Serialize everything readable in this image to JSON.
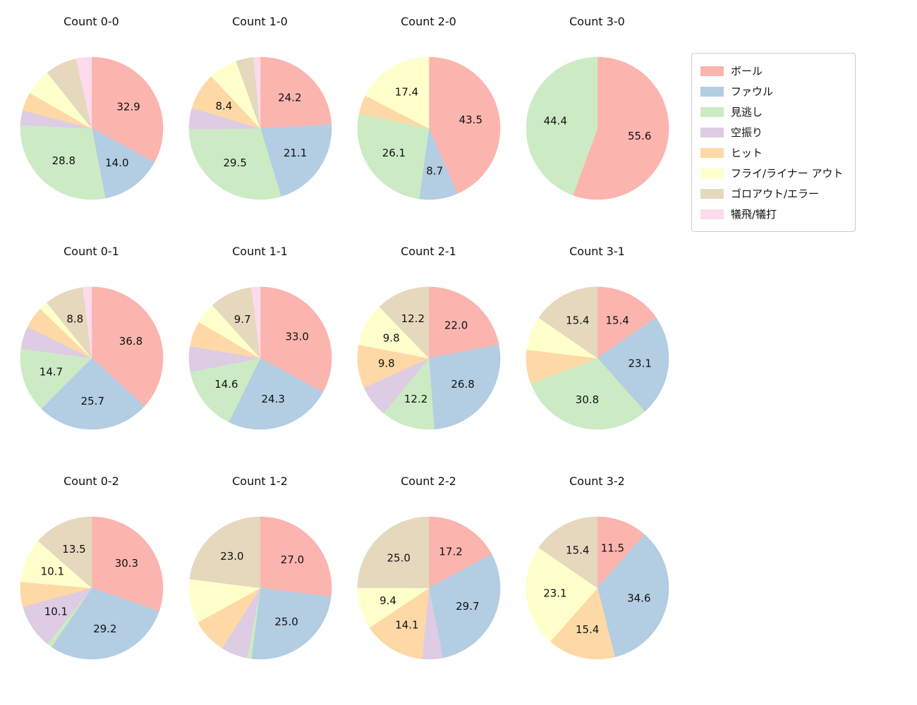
{
  "legend": {
    "items": [
      {
        "label": "ボール",
        "color": "#fbb4ae"
      },
      {
        "label": "ファウル",
        "color": "#b3cde3"
      },
      {
        "label": "見逃し",
        "color": "#ccebc5"
      },
      {
        "label": "空振り",
        "color": "#decbe4"
      },
      {
        "label": "ヒット",
        "color": "#fed9a6"
      },
      {
        "label": "フライ/ライナー アウト",
        "color": "#ffffcc"
      },
      {
        "label": "ゴロアウト/エラー",
        "color": "#e5d8bd"
      },
      {
        "label": "犠飛/犠打",
        "color": "#fddaec"
      }
    ]
  },
  "chart_data": {
    "type": "pie",
    "grid": {
      "rows": 3,
      "cols": 4
    },
    "start_angle_deg": 90,
    "direction": "clockwise",
    "legend_position": "upper right",
    "categories": [
      "ボール",
      "ファウル",
      "見逃し",
      "空振り",
      "ヒット",
      "フライ/ライナー アウト",
      "ゴロアウト/エラー",
      "犠飛/犠打"
    ],
    "colors": [
      "#fbb4ae",
      "#b3cde3",
      "#ccebc5",
      "#decbe4",
      "#fed9a6",
      "#ffffcc",
      "#e5d8bd",
      "#fddaec"
    ],
    "charts": [
      {
        "title": "Count 0-0",
        "values": [
          32.9,
          14.0,
          28.8,
          3.3,
          4.2,
          6.0,
          7.2,
          3.5
        ],
        "labels": [
          "32.9",
          "14.0",
          "28.8",
          "",
          "",
          "",
          "",
          ""
        ]
      },
      {
        "title": "Count 1-0",
        "values": [
          24.2,
          21.1,
          29.5,
          4.8,
          8.4,
          6.5,
          4.0,
          1.5
        ],
        "labels": [
          "24.2",
          "21.1",
          "29.5",
          "",
          "8.4",
          "",
          "",
          ""
        ]
      },
      {
        "title": "Count 2-0",
        "values": [
          43.5,
          8.7,
          26.1,
          0,
          4.3,
          17.4,
          0,
          0
        ],
        "labels": [
          "43.5",
          "8.7",
          "26.1",
          "",
          "",
          "17.4",
          "",
          ""
        ]
      },
      {
        "title": "Count 3-0",
        "values": [
          55.6,
          0,
          44.4,
          0,
          0,
          0,
          0,
          0
        ],
        "labels": [
          "55.6",
          "",
          "44.4",
          "",
          "",
          "",
          "",
          ""
        ]
      },
      {
        "title": "Count 0-1",
        "values": [
          36.8,
          25.7,
          14.7,
          5.0,
          5.0,
          2.0,
          8.8,
          2.0
        ],
        "labels": [
          "36.8",
          "25.7",
          "14.7",
          "",
          "",
          "",
          "8.8",
          ""
        ]
      },
      {
        "title": "Count 1-1",
        "values": [
          33.0,
          24.3,
          14.6,
          5.8,
          5.8,
          4.8,
          9.7,
          2.0
        ],
        "labels": [
          "33.0",
          "24.3",
          "14.6",
          "",
          "",
          "",
          "9.7",
          ""
        ]
      },
      {
        "title": "Count 2-1",
        "values": [
          22.0,
          26.8,
          12.2,
          7.2,
          9.8,
          9.8,
          12.2,
          0
        ],
        "labels": [
          "22.0",
          "26.8",
          "12.2",
          "",
          "9.8",
          "9.8",
          "12.2",
          ""
        ]
      },
      {
        "title": "Count 3-1",
        "values": [
          15.4,
          23.1,
          30.8,
          0,
          7.7,
          7.7,
          15.4,
          0
        ],
        "labels": [
          "15.4",
          "23.1",
          "30.8",
          "",
          "",
          "",
          "15.4",
          ""
        ]
      },
      {
        "title": "Count 0-2",
        "values": [
          30.3,
          29.2,
          1.1,
          10.1,
          5.6,
          10.1,
          13.5,
          0
        ],
        "labels": [
          "30.3",
          "29.2",
          "",
          "10.1",
          "",
          "10.1",
          "13.5",
          ""
        ]
      },
      {
        "title": "Count 1-2",
        "values": [
          27.0,
          25.0,
          1.0,
          6.0,
          8.0,
          10.0,
          23.0,
          0
        ],
        "labels": [
          "27.0",
          "25.0",
          "",
          "",
          "",
          "",
          "23.0",
          ""
        ]
      },
      {
        "title": "Count 2-2",
        "values": [
          17.2,
          29.7,
          0,
          4.7,
          14.1,
          9.4,
          25.0,
          0
        ],
        "labels": [
          "17.2",
          "29.7",
          "",
          "",
          "14.1",
          "9.4",
          "25.0",
          ""
        ]
      },
      {
        "title": "Count 3-2",
        "values": [
          11.5,
          34.6,
          0,
          0,
          15.4,
          23.1,
          15.4,
          0
        ],
        "labels": [
          "11.5",
          "34.6",
          "",
          "",
          "15.4",
          "23.1",
          "15.4",
          ""
        ]
      }
    ]
  }
}
